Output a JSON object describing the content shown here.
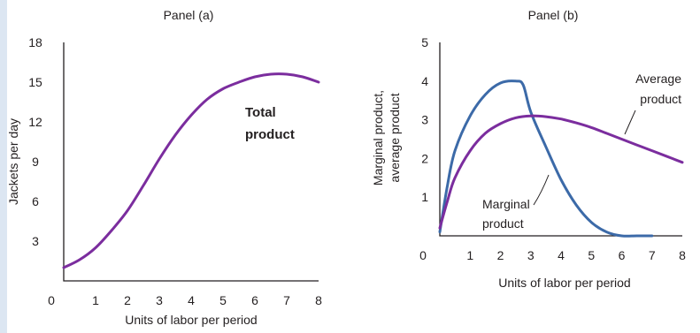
{
  "colors": {
    "total": "#7b2d9e",
    "average": "#7b2d9e",
    "marginal": "#3c6aa8",
    "axis": "#231f20",
    "sidebar": "#dce6f2"
  },
  "chart_data": [
    {
      "type": "line",
      "title": "Panel (a)",
      "xlabel": "Units of labor per period",
      "ylabel": "Jackets per day",
      "xlim": [
        0,
        8
      ],
      "ylim": [
        0,
        18
      ],
      "x_ticks": [
        "0",
        "1",
        "2",
        "3",
        "4",
        "5",
        "6",
        "7",
        "8"
      ],
      "y_ticks": [
        "3",
        "6",
        "9",
        "12",
        "15",
        "18"
      ],
      "grid": false,
      "series": [
        {
          "name": "Total product",
          "label_lines": [
            "Total",
            "product"
          ],
          "x": [
            0,
            0.5,
            1,
            1.5,
            2,
            2.5,
            3,
            3.5,
            4,
            4.5,
            5,
            5.5,
            6,
            6.5,
            7,
            7.5,
            8
          ],
          "y": [
            1.0,
            1.6,
            2.5,
            3.8,
            5.3,
            7.2,
            9.2,
            11.0,
            12.5,
            13.7,
            14.5,
            15.0,
            15.4,
            15.6,
            15.6,
            15.4,
            15.0
          ]
        }
      ]
    },
    {
      "type": "line",
      "title": "Panel (b)",
      "xlabel": "Units of labor per period",
      "ylabel_lines": [
        "Marginal product,",
        "average product"
      ],
      "xlim": [
        0,
        8
      ],
      "ylim": [
        0,
        5
      ],
      "x_ticks": [
        "0",
        "1",
        "2",
        "3",
        "4",
        "5",
        "6",
        "7",
        "8"
      ],
      "y_ticks": [
        "1",
        "2",
        "3",
        "4",
        "5"
      ],
      "grid": false,
      "series": [
        {
          "name": "Marginal product",
          "label_lines": [
            "Marginal",
            "product"
          ],
          "x": [
            0,
            0.25,
            0.5,
            1,
            1.5,
            2,
            2.5,
            2.75,
            3,
            3.5,
            4,
            4.5,
            5,
            5.5,
            6,
            6.5,
            7
          ],
          "y": [
            0.1,
            1.3,
            2.2,
            3.1,
            3.65,
            3.95,
            4.0,
            3.9,
            3.2,
            2.3,
            1.45,
            0.8,
            0.35,
            0.1,
            0.0,
            0.0,
            0.0
          ]
        },
        {
          "name": "Average product",
          "label_lines": [
            "Average",
            "product"
          ],
          "x": [
            0,
            0.25,
            0.5,
            1,
            1.5,
            2,
            2.5,
            3,
            3.5,
            4,
            4.5,
            5,
            5.5,
            6,
            6.5,
            7,
            7.5,
            8
          ],
          "y": [
            0.2,
            0.9,
            1.5,
            2.2,
            2.65,
            2.9,
            3.05,
            3.1,
            3.08,
            3.02,
            2.92,
            2.8,
            2.65,
            2.5,
            2.35,
            2.2,
            2.05,
            1.9
          ]
        }
      ]
    }
  ]
}
